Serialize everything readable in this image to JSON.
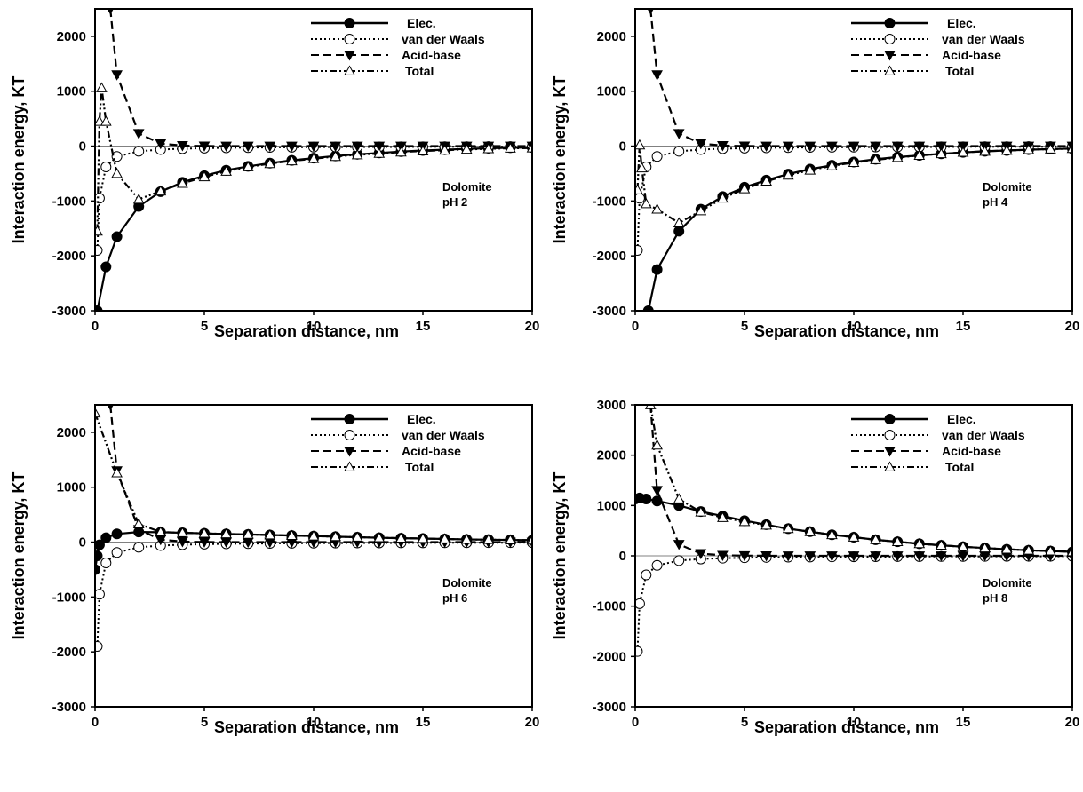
{
  "chart_data": [
    {
      "type": "line",
      "xlabel": "Separation distance, nm",
      "ylabel": "Interaction energy, KT",
      "xlim": [
        0,
        20
      ],
      "ylim": [
        -3000,
        2500
      ],
      "xticks": [
        "0",
        "5",
        "10",
        "15",
        "20"
      ],
      "yticks": [
        "-3000",
        "-2000",
        "-1000",
        "0",
        "1000",
        "2000"
      ],
      "annotation": [
        "Dolomite",
        "pH 2"
      ],
      "legend_position": "top-right",
      "series": [
        {
          "name": "Elec.",
          "style": "solid",
          "marker": "filled-circle",
          "x": [
            0.1,
            0.5,
            1,
            2,
            3,
            4,
            5,
            6,
            7,
            8,
            9,
            10,
            11,
            12,
            13,
            14,
            15,
            16,
            17,
            18,
            19,
            20
          ],
          "y": [
            -3000,
            -2200,
            -1650,
            -1100,
            -830,
            -660,
            -540,
            -440,
            -370,
            -310,
            -260,
            -220,
            -180,
            -150,
            -125,
            -100,
            -80,
            -65,
            -50,
            -40,
            -30,
            -25
          ]
        },
        {
          "name": "van der Waals",
          "style": "dotted",
          "marker": "open-circle",
          "x": [
            0.1,
            0.2,
            0.5,
            1,
            2,
            3,
            4,
            5,
            6,
            7,
            8,
            9,
            10,
            11,
            12,
            13,
            14,
            15,
            16,
            17,
            18,
            19,
            20
          ],
          "y": [
            -1900,
            -950,
            -380,
            -190,
            -95,
            -63,
            -47,
            -38,
            -32,
            -27,
            -24,
            -21,
            -19,
            -17,
            -16,
            -15,
            -14,
            -13,
            -12,
            -11,
            -10,
            -10,
            -9
          ]
        },
        {
          "name": "Acid-base",
          "style": "dashed",
          "marker": "filled-triangle-down",
          "x": [
            0.7,
            1,
            2,
            3,
            4,
            5,
            6,
            7,
            8,
            9,
            10,
            11,
            12,
            13,
            14,
            15,
            16,
            17,
            18,
            19,
            20
          ],
          "y": [
            2500,
            1300,
            230,
            45,
            10,
            3,
            1,
            0,
            0,
            0,
            0,
            0,
            0,
            0,
            0,
            0,
            0,
            0,
            0,
            0,
            0
          ]
        },
        {
          "name": "Total",
          "style": "dash-dot",
          "marker": "open-triangle",
          "x": [
            0.1,
            0.2,
            0.3,
            0.5,
            1,
            2,
            3,
            4,
            5,
            6,
            7,
            8,
            9,
            10,
            11,
            12,
            13,
            14,
            15,
            16,
            17,
            18,
            19,
            20
          ],
          "y": [
            -1550,
            450,
            1060,
            450,
            -500,
            -970,
            -820,
            -680,
            -560,
            -460,
            -380,
            -320,
            -270,
            -230,
            -190,
            -160,
            -135,
            -110,
            -90,
            -75,
            -60,
            -50,
            -40,
            -35
          ]
        }
      ]
    },
    {
      "type": "line",
      "xlabel": "Separation distance, nm",
      "ylabel": "Interaction energy, KT",
      "xlim": [
        0,
        20
      ],
      "ylim": [
        -3000,
        2500
      ],
      "xticks": [
        "0",
        "5",
        "10",
        "15",
        "20"
      ],
      "yticks": [
        "-3000",
        "-2000",
        "-1000",
        "0",
        "1000",
        "2000"
      ],
      "annotation": [
        "Dolomite",
        "pH 4"
      ],
      "legend_position": "top-right",
      "series": [
        {
          "name": "Elec.",
          "style": "solid",
          "marker": "filled-circle",
          "x": [
            0.6,
            1,
            2,
            3,
            4,
            5,
            6,
            7,
            8,
            9,
            10,
            11,
            12,
            13,
            14,
            15,
            16,
            17,
            18,
            19,
            20
          ],
          "y": [
            -3000,
            -2250,
            -1550,
            -1150,
            -920,
            -750,
            -620,
            -510,
            -420,
            -350,
            -290,
            -240,
            -200,
            -170,
            -140,
            -115,
            -95,
            -80,
            -65,
            -55,
            -45
          ]
        },
        {
          "name": "van der Waals",
          "style": "dotted",
          "marker": "open-circle",
          "x": [
            0.1,
            0.2,
            0.5,
            1,
            2,
            3,
            4,
            5,
            6,
            7,
            8,
            9,
            10,
            11,
            12,
            13,
            14,
            15,
            16,
            17,
            18,
            19,
            20
          ],
          "y": [
            -1900,
            -950,
            -380,
            -190,
            -95,
            -63,
            -47,
            -38,
            -32,
            -27,
            -24,
            -21,
            -19,
            -17,
            -16,
            -15,
            -14,
            -13,
            -12,
            -11,
            -10,
            -10,
            -9
          ]
        },
        {
          "name": "Acid-base",
          "style": "dashed",
          "marker": "filled-triangle-down",
          "x": [
            0.7,
            1,
            2,
            3,
            4,
            5,
            6,
            7,
            8,
            9,
            10,
            11,
            12,
            13,
            14,
            15,
            16,
            17,
            18,
            19,
            20
          ],
          "y": [
            2500,
            1300,
            230,
            45,
            10,
            3,
            1,
            0,
            0,
            0,
            0,
            0,
            0,
            0,
            0,
            0,
            0,
            0,
            0,
            0,
            0
          ]
        },
        {
          "name": "Total",
          "style": "dash-dot",
          "marker": "open-triangle",
          "x": [
            0.1,
            0.2,
            0.3,
            0.5,
            1,
            2,
            3,
            4,
            5,
            6,
            7,
            8,
            9,
            10,
            11,
            12,
            13,
            14,
            15,
            16,
            17,
            18,
            19,
            20
          ],
          "y": [
            -800,
            20,
            -400,
            -1050,
            -1150,
            -1400,
            -1180,
            -950,
            -780,
            -640,
            -530,
            -440,
            -360,
            -300,
            -250,
            -210,
            -170,
            -140,
            -115,
            -95,
            -80,
            -65,
            -55,
            -45
          ]
        }
      ]
    },
    {
      "type": "line",
      "xlabel": "Separation distance, nm",
      "ylabel": "Interaction energy, KT",
      "xlim": [
        0,
        20
      ],
      "ylim": [
        -3000,
        2500
      ],
      "xticks": [
        "0",
        "5",
        "10",
        "15",
        "20"
      ],
      "yticks": [
        "-3000",
        "-2000",
        "-1000",
        "0",
        "1000",
        "2000"
      ],
      "annotation": [
        "Dolomite",
        "pH 6"
      ],
      "legend_position": "top-right",
      "series": [
        {
          "name": "Elec.",
          "style": "solid",
          "marker": "filled-circle",
          "x": [
            0,
            0.1,
            0.2,
            0.5,
            1,
            2,
            3,
            4,
            5,
            6,
            7,
            8,
            9,
            10,
            11,
            12,
            13,
            14,
            15,
            16,
            17,
            18,
            19,
            20
          ],
          "y": [
            -500,
            -250,
            -50,
            80,
            150,
            185,
            180,
            170,
            160,
            150,
            140,
            130,
            120,
            110,
            100,
            90,
            80,
            72,
            65,
            58,
            50,
            45,
            40,
            35
          ]
        },
        {
          "name": "van der Waals",
          "style": "dotted",
          "marker": "open-circle",
          "x": [
            0.1,
            0.2,
            0.5,
            1,
            2,
            3,
            4,
            5,
            6,
            7,
            8,
            9,
            10,
            11,
            12,
            13,
            14,
            15,
            16,
            17,
            18,
            19,
            20
          ],
          "y": [
            -1900,
            -950,
            -380,
            -190,
            -95,
            -63,
            -47,
            -38,
            -32,
            -27,
            -24,
            -21,
            -19,
            -17,
            -16,
            -15,
            -14,
            -13,
            -12,
            -11,
            -10,
            -10,
            -9
          ]
        },
        {
          "name": "Acid-base",
          "style": "dashed",
          "marker": "filled-triangle-down",
          "x": [
            0.7,
            1,
            2,
            3,
            4,
            5,
            6,
            7,
            8,
            9,
            10,
            11,
            12,
            13,
            14,
            15,
            16,
            17,
            18,
            19,
            20
          ],
          "y": [
            2500,
            1300,
            230,
            45,
            10,
            3,
            1,
            0,
            0,
            0,
            0,
            0,
            0,
            0,
            0,
            0,
            0,
            0,
            0,
            0,
            0
          ]
        },
        {
          "name": "Total",
          "style": "dash-dot",
          "marker": "open-triangle",
          "x": [
            0,
            1,
            2,
            3,
            4,
            5,
            6,
            7,
            8,
            9,
            10,
            11,
            12,
            13,
            14,
            15,
            16,
            17,
            18,
            19,
            20
          ],
          "y": [
            2350,
            1260,
            330,
            185,
            170,
            160,
            150,
            140,
            130,
            120,
            110,
            100,
            90,
            80,
            72,
            65,
            58,
            50,
            45,
            40,
            35
          ]
        }
      ]
    },
    {
      "type": "line",
      "xlabel": "Separation distance, nm",
      "ylabel": "Interaction energy, KT",
      "xlim": [
        0,
        20
      ],
      "ylim": [
        -3000,
        3000
      ],
      "xticks": [
        "0",
        "5",
        "10",
        "15",
        "20"
      ],
      "yticks": [
        "-3000",
        "-2000",
        "-1000",
        "0",
        "1000",
        "2000",
        "3000"
      ],
      "annotation": [
        "Dolomite",
        "pH 8"
      ],
      "legend_position": "top-right",
      "series": [
        {
          "name": "Elec.",
          "style": "solid",
          "marker": "filled-circle",
          "x": [
            0,
            0.2,
            0.5,
            1,
            2,
            3,
            4,
            5,
            6,
            7,
            8,
            9,
            10,
            11,
            12,
            13,
            14,
            15,
            16,
            17,
            18,
            19,
            20
          ],
          "y": [
            1130,
            1150,
            1130,
            1090,
            1000,
            880,
            790,
            700,
            620,
            540,
            480,
            420,
            370,
            320,
            280,
            240,
            210,
            180,
            155,
            130,
            110,
            95,
            80
          ]
        },
        {
          "name": "van der Waals",
          "style": "dotted",
          "marker": "open-circle",
          "x": [
            0.1,
            0.2,
            0.5,
            1,
            2,
            3,
            4,
            5,
            6,
            7,
            8,
            9,
            10,
            11,
            12,
            13,
            14,
            15,
            16,
            17,
            18,
            19,
            20
          ],
          "y": [
            -1900,
            -950,
            -380,
            -190,
            -95,
            -63,
            -47,
            -38,
            -32,
            -27,
            -24,
            -21,
            -19,
            -17,
            -16,
            -15,
            -14,
            -13,
            -12,
            -11,
            -10,
            -10,
            -9
          ]
        },
        {
          "name": "Acid-base",
          "style": "dashed",
          "marker": "filled-triangle-down",
          "x": [
            0.7,
            1,
            2,
            3,
            4,
            5,
            6,
            7,
            8,
            9,
            10,
            11,
            12,
            13,
            14,
            15,
            16,
            17,
            18,
            19,
            20
          ],
          "y": [
            3000,
            1300,
            230,
            45,
            10,
            3,
            1,
            0,
            0,
            0,
            0,
            0,
            0,
            0,
            0,
            0,
            0,
            0,
            0,
            0,
            0
          ]
        },
        {
          "name": "Total",
          "style": "dash-dot",
          "marker": "open-triangle",
          "x": [
            0.7,
            1,
            2,
            3,
            4,
            5,
            6,
            7,
            8,
            9,
            10,
            11,
            12,
            13,
            14,
            15,
            16,
            17,
            18,
            19,
            20
          ],
          "y": [
            3000,
            2200,
            1130,
            870,
            760,
            680,
            610,
            540,
            480,
            420,
            370,
            320,
            280,
            240,
            210,
            180,
            155,
            130,
            110,
            95,
            80
          ]
        }
      ]
    }
  ]
}
